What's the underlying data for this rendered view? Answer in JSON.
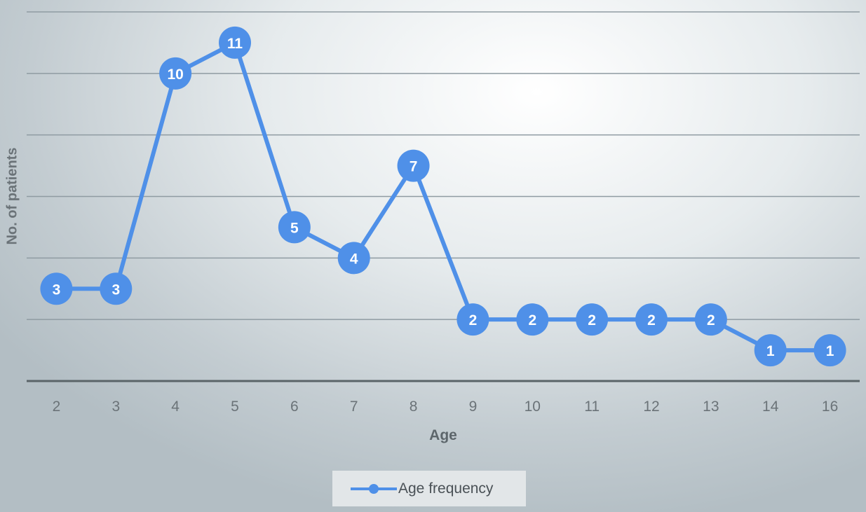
{
  "chart_data": {
    "type": "line",
    "title": "",
    "xlabel": "Age",
    "ylabel": "No. of patients",
    "categories": [
      "2",
      "3",
      "4",
      "5",
      "6",
      "7",
      "8",
      "9",
      "10",
      "11",
      "12",
      "13",
      "14",
      "16"
    ],
    "series": [
      {
        "name": "Age frequency",
        "values": [
          3,
          3,
          10,
          11,
          5,
          4,
          7,
          2,
          2,
          2,
          2,
          2,
          1,
          1
        ]
      }
    ],
    "ylim": [
      0,
      12
    ],
    "grid": true,
    "legend": "bottom",
    "data_labels": true,
    "colors": {
      "series": "#4f90e8",
      "grid": "#8f9ba2",
      "axis": "#5a6468",
      "tick_label": "#6b7378",
      "marker_label": "#ffffff"
    }
  }
}
